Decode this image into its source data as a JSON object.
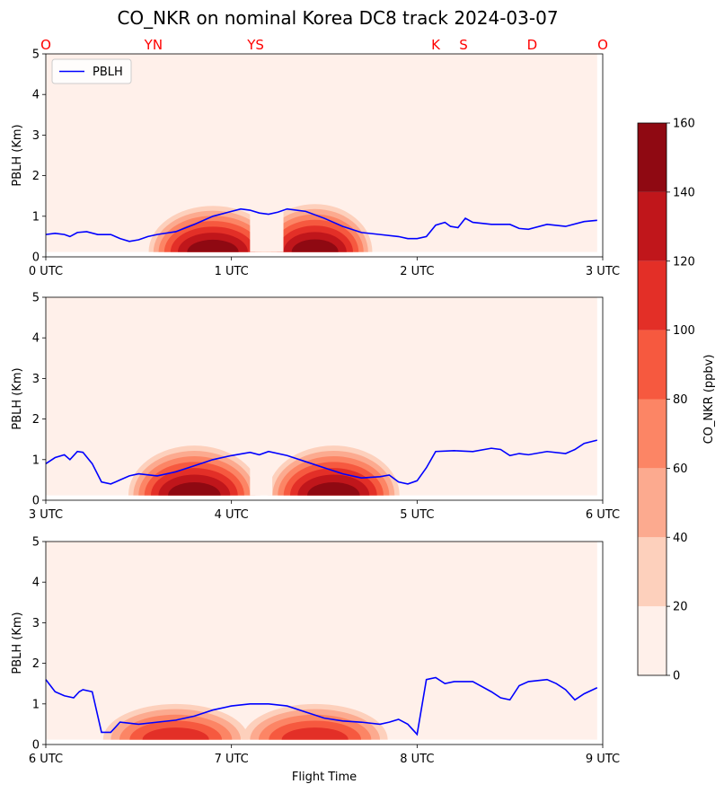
{
  "title": "CO_NKR on nominal Korea DC8 track 2024-03-07",
  "colors": {
    "pblh": "#0000ff",
    "site_labels": "#ff0000",
    "levels": [
      "#fff0ea",
      "#fdd0bc",
      "#fcaa8f",
      "#fc8565",
      "#f6593f",
      "#e32f27",
      "#c0161b",
      "#8f0912"
    ]
  },
  "chart_data": {
    "type": "contour",
    "colorbar": {
      "label": "CO_NKR (ppbv)",
      "levels": [
        0,
        20,
        40,
        60,
        80,
        100,
        120,
        140,
        160
      ],
      "tick_labels": [
        "0",
        "20",
        "40",
        "60",
        "80",
        "100",
        "120",
        "140",
        "160"
      ]
    },
    "sites": [
      {
        "label": "O",
        "utc": 0.0
      },
      {
        "label": "YN",
        "utc": 0.58
      },
      {
        "label": "YS",
        "utc": 1.13
      },
      {
        "label": "K",
        "utc": 2.1
      },
      {
        "label": "S",
        "utc": 2.25
      },
      {
        "label": "D",
        "utc": 2.62
      },
      {
        "label": "O",
        "utc": 3.0
      }
    ],
    "xlabel": "Flight Time",
    "panels": [
      {
        "ylabel": "PBLH (Km)",
        "xlim": [
          0,
          3
        ],
        "ylim": [
          0,
          5
        ],
        "xticks": [
          "0 UTC",
          "1 UTC",
          "2 UTC",
          "3 UTC"
        ],
        "yticks": [
          "0",
          "1",
          "2",
          "3",
          "4",
          "5"
        ],
        "legend": "PBLH",
        "legend_position": "top-left",
        "pblh": {
          "x": [
            0,
            0.05,
            0.1,
            0.13,
            0.17,
            0.22,
            0.28,
            0.35,
            0.4,
            0.45,
            0.5,
            0.55,
            0.6,
            0.7,
            0.8,
            0.9,
            1.0,
            1.05,
            1.1,
            1.15,
            1.2,
            1.25,
            1.3,
            1.4,
            1.5,
            1.6,
            1.7,
            1.8,
            1.9,
            1.95,
            2.0,
            2.05,
            2.1,
            2.15,
            2.18,
            2.22,
            2.26,
            2.3,
            2.4,
            2.5,
            2.55,
            2.6,
            2.7,
            2.8,
            2.9,
            2.97
          ],
          "y": [
            0.55,
            0.58,
            0.55,
            0.5,
            0.6,
            0.62,
            0.55,
            0.55,
            0.45,
            0.38,
            0.42,
            0.5,
            0.55,
            0.62,
            0.8,
            1.0,
            1.12,
            1.18,
            1.15,
            1.08,
            1.05,
            1.1,
            1.18,
            1.12,
            0.95,
            0.75,
            0.6,
            0.55,
            0.5,
            0.45,
            0.45,
            0.5,
            0.78,
            0.85,
            0.75,
            0.72,
            0.95,
            0.85,
            0.8,
            0.8,
            0.7,
            0.68,
            0.8,
            0.75,
            0.87,
            0.9
          ]
        },
        "blobs": [
          {
            "center": 0.9,
            "width": 0.34,
            "peak": 150,
            "height": 1.2,
            "gap_start": 1.1,
            "gap_end": 1.28
          },
          {
            "center": 1.45,
            "width": 0.3,
            "peak": 150,
            "height": 1.25,
            "gap_start": 1.1,
            "gap_end": 1.28
          }
        ]
      },
      {
        "ylabel": "PBLH (Km)",
        "xlim": [
          3,
          6
        ],
        "ylim": [
          0,
          5
        ],
        "xticks": [
          "3 UTC",
          "4 UTC",
          "5 UTC",
          "6 UTC"
        ],
        "yticks": [
          "0",
          "1",
          "2",
          "3",
          "4",
          "5"
        ],
        "pblh": {
          "x": [
            3.0,
            3.05,
            3.1,
            3.13,
            3.17,
            3.2,
            3.25,
            3.3,
            3.35,
            3.4,
            3.45,
            3.5,
            3.6,
            3.7,
            3.8,
            3.9,
            4.0,
            4.1,
            4.15,
            4.2,
            4.3,
            4.4,
            4.5,
            4.6,
            4.7,
            4.8,
            4.85,
            4.9,
            4.95,
            5.0,
            5.05,
            5.1,
            5.2,
            5.3,
            5.4,
            5.45,
            5.5,
            5.55,
            5.6,
            5.7,
            5.8,
            5.85,
            5.9,
            5.97
          ],
          "y": [
            0.9,
            1.05,
            1.12,
            1.0,
            1.2,
            1.18,
            0.9,
            0.45,
            0.4,
            0.5,
            0.6,
            0.65,
            0.6,
            0.7,
            0.85,
            1.0,
            1.1,
            1.18,
            1.12,
            1.2,
            1.1,
            0.95,
            0.8,
            0.65,
            0.55,
            0.58,
            0.62,
            0.45,
            0.4,
            0.48,
            0.8,
            1.2,
            1.22,
            1.2,
            1.28,
            1.25,
            1.1,
            1.15,
            1.12,
            1.2,
            1.15,
            1.25,
            1.4,
            1.48
          ]
        },
        "blobs": [
          {
            "center": 3.8,
            "width": 0.35,
            "peak": 160,
            "height": 1.3,
            "gap_start": 4.1,
            "gap_end": 4.22
          },
          {
            "center": 4.55,
            "width": 0.35,
            "peak": 160,
            "height": 1.3,
            "gap_start": 4.1,
            "gap_end": 4.22
          }
        ]
      },
      {
        "ylabel": "PBLH (Km)",
        "xlim": [
          6,
          9
        ],
        "ylim": [
          0,
          5
        ],
        "xticks": [
          "6 UTC",
          "7 UTC",
          "8 UTC",
          "9 UTC"
        ],
        "yticks": [
          "0",
          "1",
          "2",
          "3",
          "4",
          "5"
        ],
        "pblh": {
          "x": [
            6.0,
            6.05,
            6.1,
            6.15,
            6.18,
            6.2,
            6.25,
            6.3,
            6.35,
            6.4,
            6.5,
            6.6,
            6.7,
            6.8,
            6.9,
            7.0,
            7.1,
            7.2,
            7.3,
            7.4,
            7.5,
            7.6,
            7.7,
            7.8,
            7.85,
            7.9,
            7.95,
            8.0,
            8.05,
            8.1,
            8.15,
            8.2,
            8.3,
            8.4,
            8.45,
            8.5,
            8.55,
            8.6,
            8.7,
            8.75,
            8.8,
            8.85,
            8.9,
            8.97
          ],
          "y": [
            1.6,
            1.3,
            1.2,
            1.15,
            1.3,
            1.35,
            1.3,
            0.3,
            0.3,
            0.55,
            0.5,
            0.55,
            0.6,
            0.7,
            0.85,
            0.95,
            1.0,
            1.0,
            0.95,
            0.8,
            0.65,
            0.58,
            0.55,
            0.5,
            0.55,
            0.62,
            0.5,
            0.25,
            1.6,
            1.65,
            1.5,
            1.55,
            1.55,
            1.3,
            1.15,
            1.1,
            1.45,
            1.55,
            1.6,
            1.5,
            1.35,
            1.1,
            1.25,
            1.4
          ]
        },
        "blobs": [
          {
            "center": 6.7,
            "width": 0.4,
            "peak": 110,
            "height": 0.95,
            "gap_start": 0,
            "gap_end": 0
          },
          {
            "center": 7.45,
            "width": 0.4,
            "peak": 110,
            "height": 0.95,
            "gap_start": 0,
            "gap_end": 0
          }
        ]
      }
    ]
  }
}
